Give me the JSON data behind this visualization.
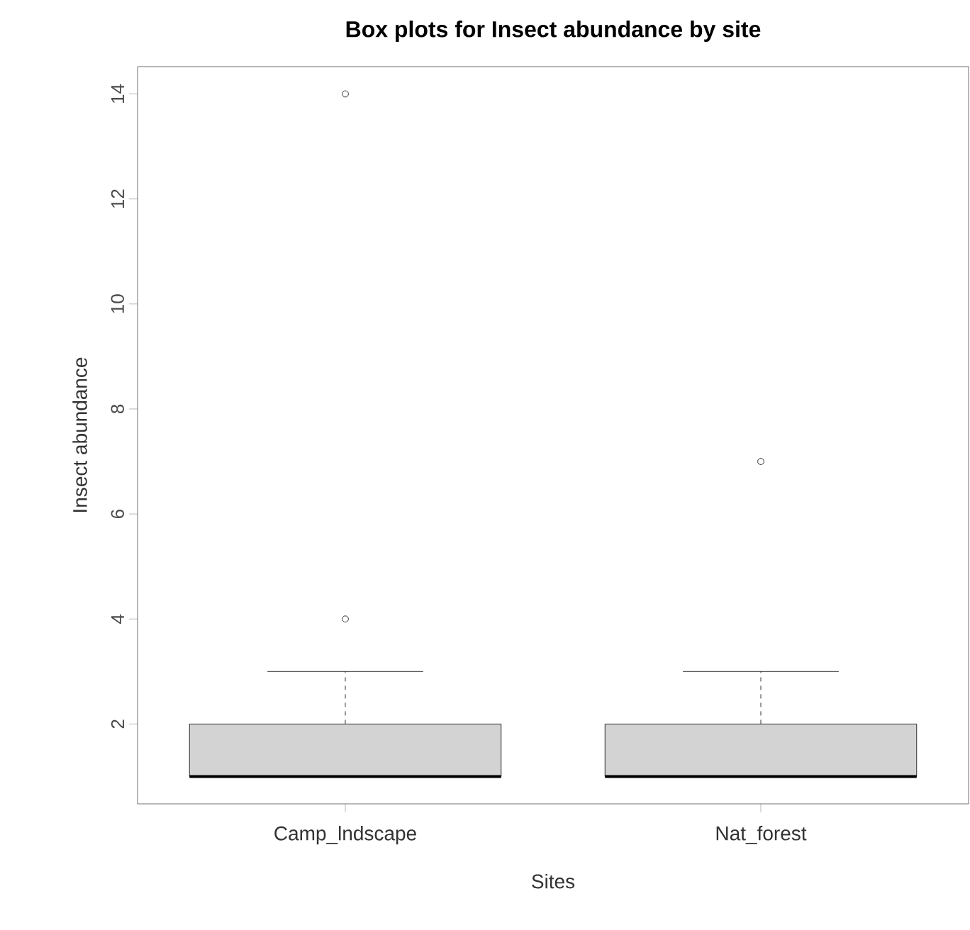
{
  "chart_data": {
    "type": "box",
    "title": "Box plots for Insect abundance by site",
    "xlabel": "Sites",
    "ylabel": "Insect abundance",
    "categories": [
      "Camp_lndscape",
      "Nat_forest"
    ],
    "color": "#d3d3d3",
    "ylim": [
      0.48,
      14.52
    ],
    "yticks": [
      2,
      4,
      6,
      8,
      10,
      12,
      14
    ],
    "marker": "circle",
    "boxes": [
      {
        "low": 1,
        "q1": 1,
        "median": 1,
        "q3": 2,
        "high": 3,
        "outliers": [
          4,
          14
        ]
      },
      {
        "low": 1,
        "q1": 1,
        "median": 1,
        "q3": 2,
        "high": 3,
        "outliers": [
          7
        ]
      }
    ]
  }
}
